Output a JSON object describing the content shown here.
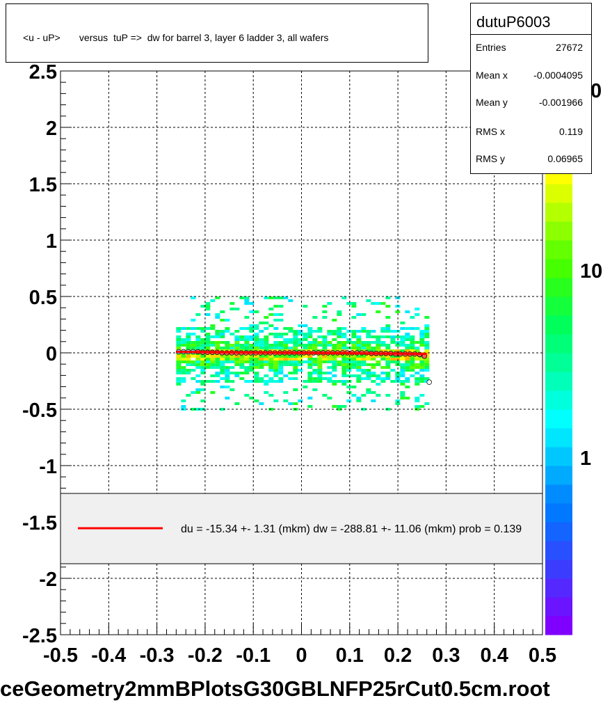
{
  "title": "<u - uP>       versus  tuP =>  dw for barrel 3, layer 6 ladder 3, all wafers",
  "stats": {
    "name": "dutuP6003",
    "rows": [
      {
        "label": "Entries",
        "value": "27672"
      },
      {
        "label": "Mean x",
        "value": "-0.0004095"
      },
      {
        "label": "Mean y",
        "value": "-0.001966"
      },
      {
        "label": "RMS x",
        "value": "0.119"
      },
      {
        "label": "RMS y",
        "value": "0.06965"
      }
    ]
  },
  "legend_text": "du =  -15.34 +-  1.31 (mkm) dw = -288.81 +- 11.06 (mkm) prob = 0.139",
  "file_label": "ceGeometry2mmBPlotsG30GBLNFP25rCut0.5cm.root",
  "colors": {
    "fit_line": "#ff0000",
    "legend_bg": "#f0f0f0",
    "grid": "#000000",
    "palette": [
      "#7f00ff",
      "#6a14ff",
      "#5528ff",
      "#3c3cff",
      "#2850ff",
      "#1464ff",
      "#0078ff",
      "#008cff",
      "#00aaff",
      "#00c8ff",
      "#00e6ff",
      "#00ffff",
      "#00ffdc",
      "#00ffb9",
      "#00ff96",
      "#00ff78",
      "#00ff5a",
      "#14ff3c",
      "#28ff1e",
      "#46ff00",
      "#64ff00",
      "#8cff00",
      "#b4ff00",
      "#dcff00",
      "#ffff00",
      "#ffdc00",
      "#ffb400",
      "#ff8c00",
      "#ff6400",
      "#ff3c00"
    ]
  },
  "chart_data": {
    "type": "heatmap",
    "title": "<u - uP>       versus  tuP =>  dw for barrel 3, layer 6 ladder 3, all wafers",
    "xlim": [
      -0.5,
      0.5
    ],
    "ylim": [
      -2.5,
      2.5
    ],
    "x_ticks": [
      -0.5,
      -0.4,
      -0.3,
      -0.2,
      -0.1,
      0,
      0.1,
      0.2,
      0.3,
      0.4,
      0.5
    ],
    "x_tick_labels": [
      "-0.5",
      "-0.4",
      "-0.3",
      "-0.2",
      "-0.1",
      "0",
      "0.1",
      "0.2",
      "0.3",
      "0.4",
      "0.5"
    ],
    "y_ticks": [
      -2.5,
      -2,
      -1.5,
      -1,
      -0.5,
      0,
      0.5,
      1,
      1.5,
      2,
      2.5
    ],
    "y_tick_labels": [
      "-2.5",
      "-2",
      "-1.5",
      "-1",
      "-0.5",
      "0",
      "0.5",
      "1",
      "1.5",
      "2",
      "2.5"
    ],
    "grid": true,
    "colorbar": {
      "scale": "log",
      "tick_labels": [
        "1",
        "10"
      ],
      "tick_values": [
        1,
        10
      ]
    },
    "band": {
      "x_range": [
        -0.26,
        0.26
      ],
      "y_core": [
        -0.06,
        0.06
      ],
      "y_extent": [
        -0.5,
        0.5
      ]
    },
    "profile_points": {
      "x": [
        -0.255,
        -0.245,
        -0.235,
        -0.225,
        -0.215,
        -0.205,
        -0.195,
        -0.185,
        -0.175,
        -0.165,
        -0.155,
        -0.145,
        -0.135,
        -0.125,
        -0.115,
        -0.105,
        -0.095,
        -0.085,
        -0.075,
        -0.065,
        -0.055,
        -0.045,
        -0.035,
        -0.025,
        -0.015,
        -0.005,
        0.005,
        0.015,
        0.025,
        0.035,
        0.045,
        0.055,
        0.065,
        0.075,
        0.085,
        0.095,
        0.105,
        0.115,
        0.125,
        0.135,
        0.145,
        0.155,
        0.165,
        0.175,
        0.185,
        0.195,
        0.205,
        0.215,
        0.225,
        0.235,
        0.245,
        0.255,
        0.265
      ],
      "y": [
        0.01,
        0.01,
        0.01,
        0.01,
        0.01,
        0.005,
        0.005,
        0.005,
        0.005,
        0.0,
        0.0,
        0.0,
        0.0,
        0.0,
        0.0,
        0.0,
        0.0,
        0.0,
        0.0,
        0.0,
        0.0,
        0.0,
        0.0,
        0.0,
        0.0,
        0.0,
        0.0,
        0.0,
        0.0,
        0.0,
        0.0,
        0.0,
        0.0,
        0.0,
        0.0,
        0.0,
        0.0,
        0.0,
        0.0,
        0.0,
        -0.005,
        -0.005,
        -0.005,
        -0.005,
        -0.005,
        -0.01,
        -0.01,
        -0.01,
        -0.01,
        -0.01,
        -0.015,
        -0.03,
        -0.26
      ]
    },
    "fit_line": {
      "x": [
        -0.26,
        0.26
      ],
      "y": [
        0.009,
        -0.009
      ]
    }
  }
}
